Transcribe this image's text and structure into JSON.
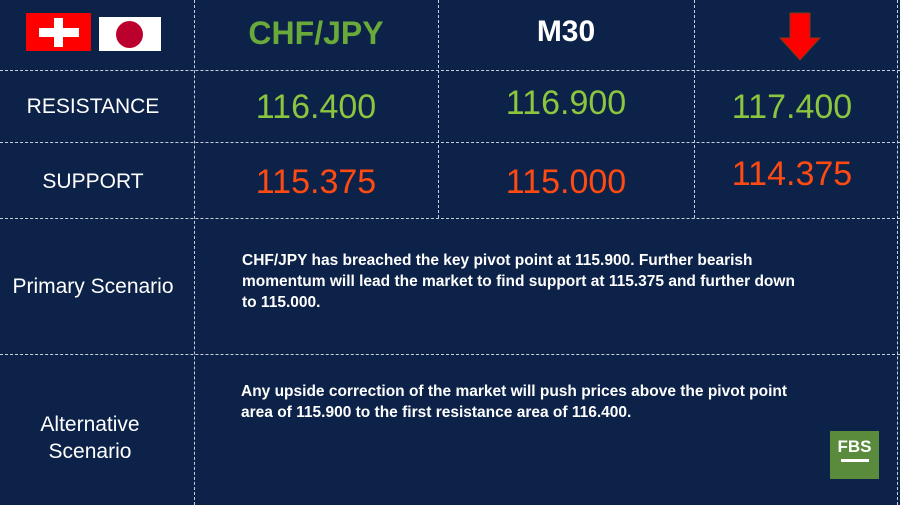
{
  "header": {
    "pair": "CHF/JPY",
    "timeframe": "M30",
    "direction_icon": "arrow-down-icon",
    "flags": [
      "switzerland-flag",
      "japan-flag"
    ]
  },
  "resistance": {
    "label": "RESISTANCE",
    "values": [
      "116.400",
      "116.900",
      "117.400"
    ]
  },
  "support": {
    "label": "SUPPORT",
    "values": [
      "115.375",
      "115.000",
      "114.375"
    ]
  },
  "primary": {
    "label": "Primary Scenario",
    "text": "CHF/JPY has  breached the key pivot point at 115.900. Further bearish momentum will lead the market to find support at 115.375 and further down to 115.000."
  },
  "alternative": {
    "label": "Alternative Scenario",
    "text": "Any upside correction of the market will push prices above the pivot point area of 115.900 to the first resistance area of 116.400."
  },
  "logo": "FBS",
  "colors": {
    "background": "#0c2248",
    "resistance": "#8cc63f",
    "support": "#ff4a12",
    "pair": "#6aaa3a",
    "arrow": "#ff0000"
  }
}
